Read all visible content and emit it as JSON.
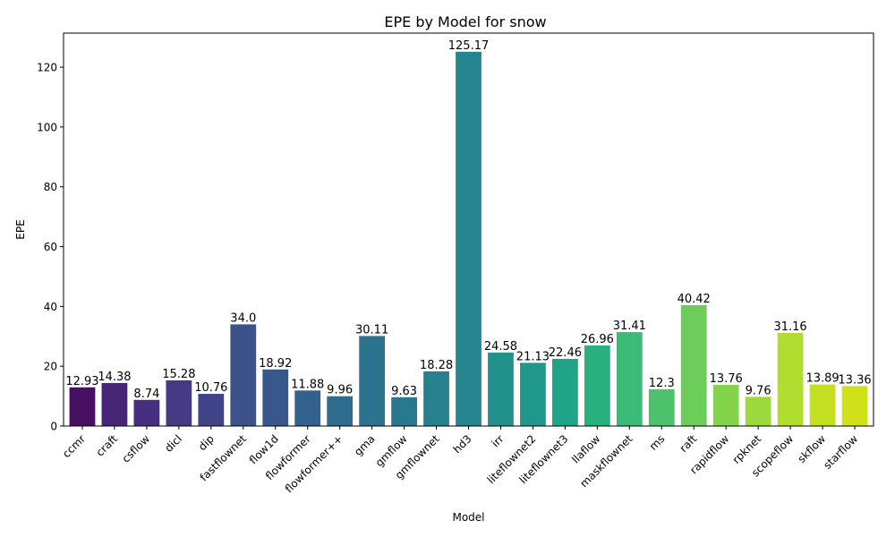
{
  "chart_data": {
    "type": "bar",
    "title": "EPE by Model for snow",
    "xlabel": "Model",
    "ylabel": "EPE",
    "ylim": [
      0,
      131.4
    ],
    "yticks": [
      0,
      20,
      40,
      60,
      80,
      100,
      120
    ],
    "grid": false,
    "legend": "none",
    "categories": [
      "ccmr",
      "craft",
      "csflow",
      "dicl",
      "dip",
      "fastflownet",
      "flow1d",
      "flowformer",
      "flowformer++",
      "gma",
      "gmflow",
      "gmflownet",
      "hd3",
      "irr",
      "liteflownet2",
      "liteflownet3",
      "llaflow",
      "maskflownet",
      "ms",
      "raft",
      "rapidflow",
      "rpknet",
      "scopeflow",
      "skflow",
      "starflow"
    ],
    "values": [
      12.93,
      14.38,
      8.74,
      15.28,
      10.76,
      34.0,
      18.92,
      11.88,
      9.96,
      30.11,
      9.63,
      18.28,
      125.17,
      24.58,
      21.13,
      22.46,
      26.96,
      31.41,
      12.3,
      40.42,
      13.76,
      9.76,
      31.16,
      13.89,
      13.36
    ],
    "value_labels": [
      "12.93",
      "14.38",
      "8.74",
      "15.28",
      "10.76",
      "34.0",
      "18.92",
      "11.88",
      "9.96",
      "30.11",
      "9.63",
      "18.28",
      "125.17",
      "24.58",
      "21.13",
      "22.46",
      "26.96",
      "31.41",
      "12.3",
      "40.42",
      "13.76",
      "9.76",
      "31.16",
      "13.89",
      "13.36"
    ],
    "colors": [
      "#471063",
      "#482677",
      "#462f7e",
      "#443b84",
      "#404387",
      "#3b528b",
      "#38588c",
      "#33618d",
      "#2f6c8e",
      "#2c738e",
      "#2a788e",
      "#27808e",
      "#25858e",
      "#21918c",
      "#1f988b",
      "#20a386",
      "#2ab07f",
      "#3bbb75",
      "#4cc26c",
      "#6ccd5a",
      "#84d44b",
      "#9bd93c",
      "#b0dd2f",
      "#c4df22",
      "#d0e11c"
    ]
  }
}
